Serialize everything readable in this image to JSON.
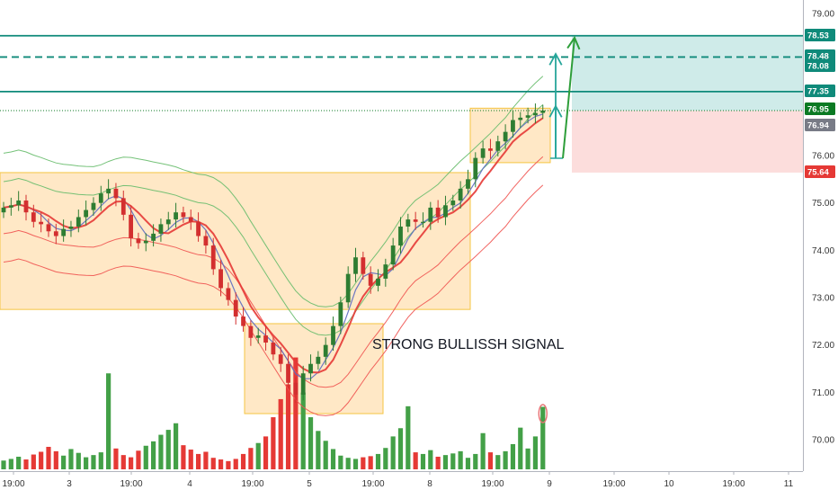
{
  "chart_data": {
    "type": "candlestick",
    "title": "",
    "y_axis": {
      "ticks": [
        "79.00",
        "78.00",
        "77.00",
        "76.00",
        "75.00",
        "74.00",
        "73.00",
        "72.00",
        "71.00",
        "70.00"
      ],
      "range": [
        69.4,
        79.2
      ]
    },
    "x_axis": {
      "ticks": [
        "19:00",
        "3",
        "19:00",
        "4",
        "19:00",
        "5",
        "19:00",
        "8",
        "19:00",
        "9",
        "19:00",
        "10",
        "19:00",
        "11"
      ]
    },
    "price_tags": [
      {
        "label": "78.53",
        "value": 78.53,
        "color": "#0f8a7a"
      },
      {
        "label": "78.48",
        "value": 78.48,
        "color": "#0f8a7a"
      },
      {
        "label": "78.08",
        "value": 78.08,
        "color": "#0f8a7a"
      },
      {
        "label": "77.35",
        "value": 77.35,
        "color": "#0f8a7a"
      },
      {
        "label": "76.95",
        "value": 76.95,
        "color": "#0b7a23"
      },
      {
        "label": "76.94",
        "value": 76.94,
        "color": "#787b86"
      },
      {
        "label": "75.64",
        "value": 75.64,
        "color": "#e53935"
      }
    ],
    "horizontal_lines": [
      {
        "value": 78.53,
        "style": "solid",
        "color": "#0f8a7a"
      },
      {
        "value": 78.08,
        "style": "dashed",
        "color": "#0f8a7a"
      },
      {
        "value": 77.35,
        "style": "solid",
        "color": "#0f8a7a"
      },
      {
        "value": 76.95,
        "style": "dotted",
        "color": "#0b7a23"
      }
    ],
    "position": {
      "entry": 76.95,
      "target": 78.53,
      "stop": 75.64
    },
    "annotation": "STRONG BULLISSH SIGNAL",
    "series": {
      "close": [
        74.9,
        74.95,
        75.05,
        74.8,
        74.6,
        74.55,
        74.4,
        74.3,
        74.45,
        74.5,
        74.7,
        74.85,
        75.0,
        75.2,
        75.3,
        75.1,
        74.75,
        74.25,
        74.15,
        74.2,
        74.35,
        74.55,
        74.65,
        74.8,
        74.7,
        74.6,
        74.3,
        74.1,
        73.6,
        73.2,
        72.95,
        72.6,
        72.4,
        72.15,
        72.2,
        72.05,
        71.8,
        71.6,
        71.2,
        70.95,
        71.4,
        71.6,
        71.75,
        72.0,
        72.4,
        72.9,
        73.5,
        73.85,
        73.5,
        73.25,
        73.4,
        73.7,
        74.1,
        74.5,
        74.65,
        74.6,
        74.6,
        74.9,
        74.7,
        74.95,
        75.05,
        75.3,
        75.5,
        75.95,
        76.15,
        76.1,
        76.3,
        76.5,
        76.75,
        76.8,
        76.85,
        76.9,
        76.95
      ],
      "volume": [
        1.6,
        1.9,
        2.3,
        1.8,
        2.7,
        3.2,
        4.1,
        3.3,
        2.5,
        3.7,
        3.0,
        2.2,
        2.6,
        3.1,
        17.5,
        3.8,
        2.6,
        2.2,
        3.4,
        4.3,
        5.1,
        6.3,
        7.2,
        8.4,
        4.4,
        3.6,
        2.8,
        3.2,
        2.1,
        1.8,
        1.5,
        1.9,
        2.8,
        3.9,
        4.8,
        6.0,
        9.5,
        12.8,
        15.5,
        20.4,
        14.0,
        9.5,
        7.0,
        5.2,
        3.7,
        2.5,
        2.1,
        1.9,
        2.2,
        2.4,
        2.8,
        3.9,
        6.0,
        7.5,
        11.5,
        3.1,
        2.8,
        3.5,
        2.3,
        2.6,
        2.9,
        3.3,
        2.1,
        2.8,
        6.6,
        3.1,
        2.6,
        3.3,
        4.6,
        7.6,
        3.8,
        6.0,
        11.4
      ]
    },
    "series_ranges": {
      "Q": [
        4,
        19,
        33,
        43,
        59,
        62,
        76
      ],
      "E": [
        2,
        10,
        17,
        37,
        41,
        50,
        60,
        68,
        72
      ]
    }
  }
}
